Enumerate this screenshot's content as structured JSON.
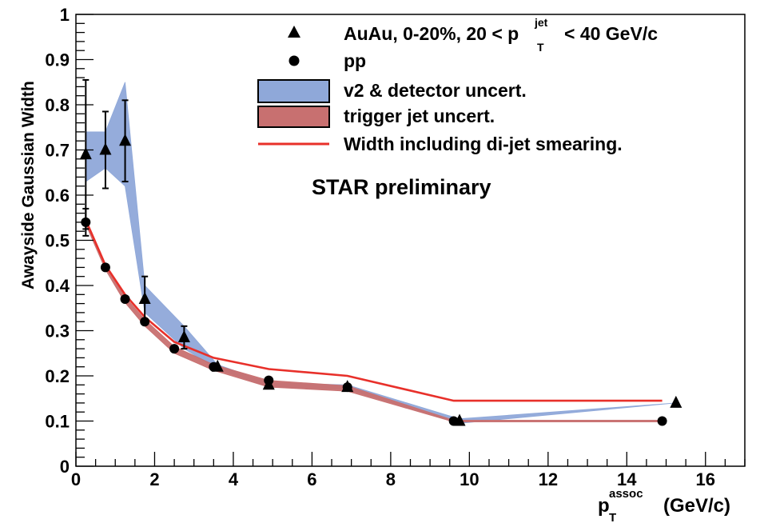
{
  "chart_data": {
    "type": "scatter",
    "title": "",
    "annotation": "STAR preliminary",
    "xlabel": {
      "main": "p",
      "sub": "T",
      "sup": "assoc",
      "unit": "(GeV/c)"
    },
    "ylabel": "Awayside Gaussian Width",
    "xlim": [
      0,
      17
    ],
    "ylim": [
      0,
      1
    ],
    "x_ticks": [
      "0",
      "2",
      "4",
      "6",
      "8",
      "10",
      "12",
      "14",
      "16"
    ],
    "x_tick_values": [
      0,
      2,
      4,
      6,
      8,
      10,
      12,
      14,
      16
    ],
    "y_ticks": [
      "0",
      "0.1",
      "0.2",
      "0.3",
      "0.4",
      "0.5",
      "0.6",
      "0.7",
      "0.8",
      "0.9",
      "1"
    ],
    "y_tick_values": [
      0,
      0.1,
      0.2,
      0.3,
      0.4,
      0.5,
      0.6,
      0.7,
      0.8,
      0.9,
      1
    ],
    "legend": {
      "auau": {
        "prefix": "AuAu, 0-20%, 20 < p",
        "sup": "jet",
        "sub": "T",
        "suffix": "< 40 GeV/c"
      },
      "pp": "pp",
      "v2_band": "v2 & detector uncert.",
      "trigger_band": "trigger jet uncert.",
      "smearing_line": "Width including di-jet smearing."
    },
    "series": [
      {
        "name": "AuAu, 0-20%",
        "marker": "triangle",
        "x": [
          0.25,
          0.75,
          1.25,
          1.75,
          2.75,
          3.6,
          4.9,
          6.9,
          9.75,
          15.25
        ],
        "y": [
          0.69,
          0.7,
          0.72,
          0.37,
          0.285,
          0.22,
          0.18,
          0.175,
          0.1,
          0.14
        ],
        "err": [
          0.165,
          0.085,
          0.09,
          0.05,
          0.025,
          0,
          0,
          0,
          0,
          0
        ]
      },
      {
        "name": "pp",
        "marker": "circle",
        "x": [
          0.25,
          0.75,
          1.25,
          1.75,
          2.5,
          3.5,
          4.9,
          6.9,
          9.6,
          14.9
        ],
        "y": [
          0.54,
          0.44,
          0.37,
          0.32,
          0.26,
          0.22,
          0.19,
          0.175,
          0.1,
          0.1
        ],
        "err": [
          0.03,
          0,
          0,
          0,
          0,
          0,
          0,
          0,
          0,
          0
        ]
      }
    ],
    "bands": [
      {
        "name": "v2 & detector uncert.",
        "color": "#8fa8d9",
        "x": [
          0.25,
          0.75,
          1.25,
          1.75,
          2.75,
          3.6,
          4.9,
          6.9,
          9.75,
          15.25
        ],
        "upper": [
          0.74,
          0.74,
          0.85,
          0.4,
          0.31,
          0.225,
          0.185,
          0.18,
          0.105,
          0.14
        ],
        "lower": [
          0.63,
          0.66,
          0.62,
          0.34,
          0.26,
          0.215,
          0.175,
          0.17,
          0.095,
          0.14
        ]
      },
      {
        "name": "trigger jet uncert.",
        "color": "#c87070",
        "x": [
          0.25,
          0.75,
          1.25,
          1.75,
          2.5,
          3.5,
          4.9,
          6.9,
          9.6,
          14.9
        ],
        "upper": [
          0.545,
          0.445,
          0.375,
          0.325,
          0.265,
          0.225,
          0.19,
          0.178,
          0.102,
          0.102
        ],
        "lower": [
          0.535,
          0.435,
          0.362,
          0.31,
          0.25,
          0.212,
          0.175,
          0.166,
          0.098,
          0.098
        ]
      }
    ],
    "lines": [
      {
        "name": "Width including di-jet smearing.",
        "color": "#e8302a",
        "x": [
          0.25,
          0.75,
          1.25,
          1.75,
          2.5,
          3.5,
          4.9,
          6.9,
          9.6,
          14.9
        ],
        "y": [
          0.545,
          0.445,
          0.38,
          0.33,
          0.275,
          0.24,
          0.215,
          0.2,
          0.145,
          0.145
        ]
      }
    ],
    "colors": {
      "markers": "#000000",
      "v2_band": "#8fa8d9",
      "trigger_band": "#c87070",
      "smearing_line": "#e8302a"
    }
  }
}
